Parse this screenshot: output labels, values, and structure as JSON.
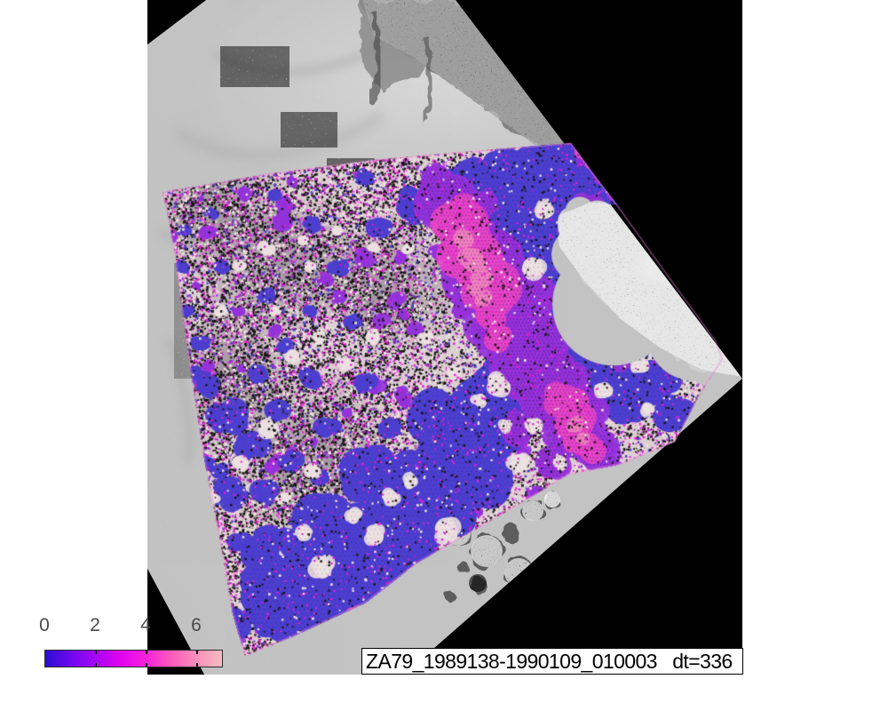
{
  "figure": {
    "title_label": "ZA79_1989138-1990109_010003   dt=336",
    "colorbar": {
      "tick_labels": [
        "0",
        "2",
        "4",
        "6"
      ],
      "tick_values": [
        0,
        2,
        4,
        6
      ],
      "gradient_stops": [
        "#2A0ED2",
        "#6E09EE",
        "#A805F4",
        "#E203F0",
        "#F722DB",
        "#FA5BB8",
        "#F98FBA",
        "#F6BDC3"
      ],
      "border_color": "#2b2b2b",
      "label_color": "#4a4a4a"
    },
    "scene": {
      "frame_color": "#000000",
      "terrain_gray": "#cccccc",
      "terrain_dark": "#7d7d7d",
      "island_gray": "#d0d0d0",
      "rock_dark": "#5d5d5d",
      "overlay": {
        "base": "#dccfd1",
        "blue": "#4c3ece",
        "purple": "#9432da",
        "magenta": "#e545c8",
        "pink_core": "#f07fc0",
        "speckle_black": "#161616",
        "speckle_magenta": "#e51fd8",
        "speckle_pale": "#ece0e0",
        "speckle_pink": "#f49ad4",
        "fringe": "#f278d6"
      }
    }
  },
  "chart_data": {
    "type": "heatmap",
    "title": "ZA79_1989138-1990109_010003   dt=336",
    "subtitle": "",
    "colorbar_ticks": [
      0,
      2,
      4,
      6
    ],
    "value_range": [
      0,
      7
    ],
    "colormap": [
      "#2A0ED2",
      "#8A06F6",
      "#EE07EE",
      "#FA58BA",
      "#F6BDC3"
    ],
    "legend_position": "bottom-left",
    "annotations": [
      "dt=336"
    ],
    "description_visible": "Rotated grayscale satellite scene on black background with speckled blue-purple-magenta-pink velocity overlay; colorbar 0-6+ at bottom left; title label strip at bottom right"
  }
}
